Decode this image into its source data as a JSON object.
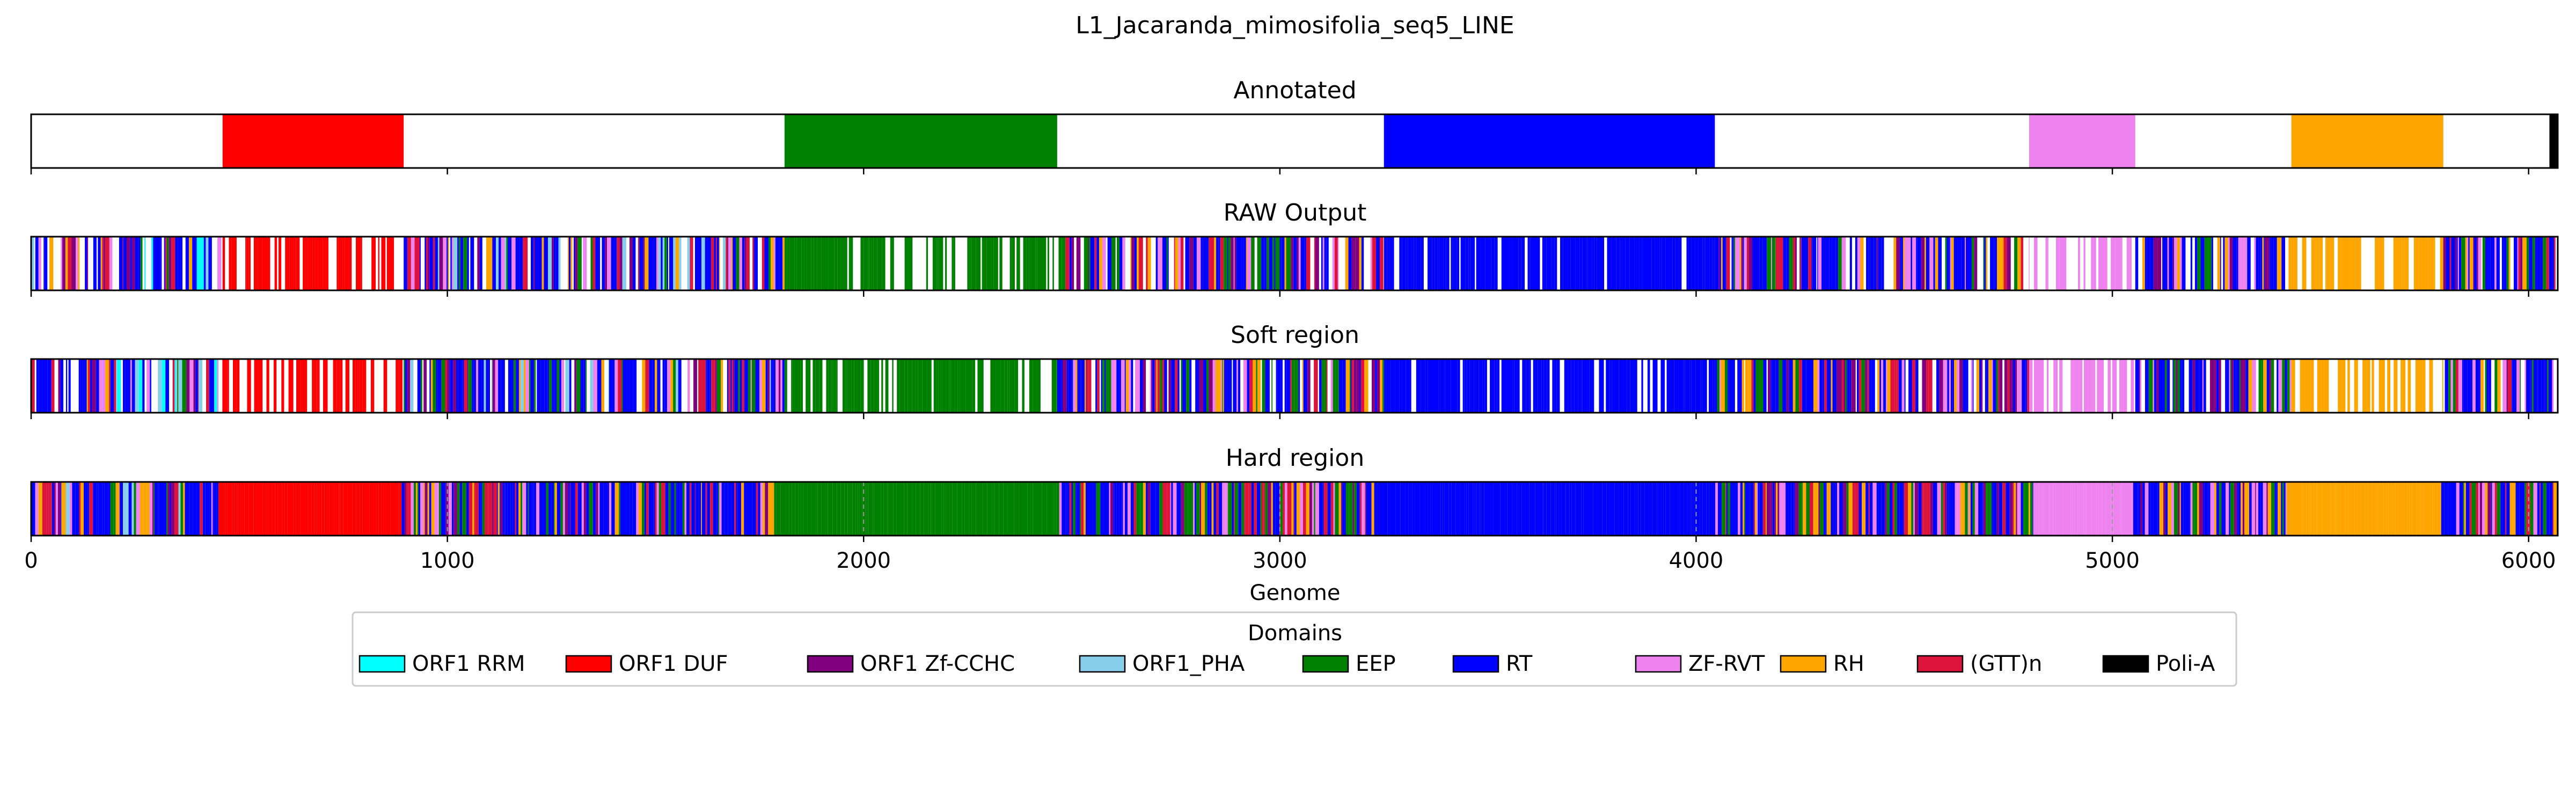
{
  "chart_data": {
    "type": "bar",
    "title": "L1_Jacaranda_mimosifolia_seq5_LINE",
    "xlabel": "Genome",
    "xlim": [
      0,
      6070
    ],
    "xticks": [
      0,
      1000,
      2000,
      3000,
      4000,
      5000,
      6000
    ],
    "tick_labels": [
      "0",
      "1000",
      "2000",
      "3000",
      "4000",
      "5000",
      "6000"
    ],
    "colors": {
      "ORF1 RRM": "#00ffff",
      "ORF1 DUF": "#ff0000",
      "ORF1 Zf-CCHC": "#800080",
      "ORF1_PHA": "#87ceeb",
      "EEP": "#008000",
      "RT": "#0000ff",
      "ZF-RVT": "#ee82ee",
      "RH": "#ffa500",
      "(GTT)n": "#dc143c",
      "Poli-A": "#000000"
    },
    "legend": {
      "title": "Domains",
      "placement": "bottom-center",
      "entries": [
        "ORF1 RRM",
        "ORF1 DUF",
        "ORF1 Zf-CCHC",
        "ORF1_PHA",
        "EEP",
        "RT",
        "ZF-RVT",
        "RH",
        "(GTT)n",
        "Poli-A"
      ]
    },
    "panels": [
      {
        "title": "Annotated",
        "segments": [
          {
            "domain": "ORF1 DUF",
            "start": 460,
            "end": 895
          },
          {
            "domain": "EEP",
            "start": 1810,
            "end": 2465
          },
          {
            "domain": "RT",
            "start": 3250,
            "end": 4045
          },
          {
            "domain": "ZF-RVT",
            "start": 4800,
            "end": 5055
          },
          {
            "domain": "RH",
            "start": 5430,
            "end": 5795
          },
          {
            "domain": "Poli-A",
            "start": 6050,
            "end": 6070
          }
        ]
      },
      {
        "title": "RAW Output",
        "regions": [
          {
            "start": 0,
            "end": 460,
            "domains": [
              "RT",
              "ORF1 RRM",
              "(GTT)n",
              "ORF1 Zf-CCHC",
              "RH",
              "EEP",
              "ZF-RVT",
              "ORF1_PHA"
            ],
            "white": 0.2
          },
          {
            "start": 460,
            "end": 895,
            "domains": [
              "ORF1 DUF"
            ],
            "white": 0.35
          },
          {
            "start": 895,
            "end": 1810,
            "domains": [
              "RT",
              "EEP",
              "(GTT)n",
              "ORF1 Zf-CCHC",
              "RH",
              "ZF-RVT",
              "ORF1_PHA"
            ],
            "white": 0.12
          },
          {
            "start": 1810,
            "end": 2465,
            "domains": [
              "EEP"
            ],
            "white": 0.3
          },
          {
            "start": 2465,
            "end": 3250,
            "domains": [
              "RT",
              "ORF1 Zf-CCHC",
              "EEP",
              "(GTT)n",
              "RH",
              "ZF-RVT"
            ],
            "white": 0.15
          },
          {
            "start": 3250,
            "end": 4045,
            "domains": [
              "RT"
            ],
            "white": 0.18
          },
          {
            "start": 4045,
            "end": 4800,
            "domains": [
              "RT",
              "ORF1 Zf-CCHC",
              "(GTT)n",
              "RH",
              "EEP",
              "ZF-RVT"
            ],
            "white": 0.1
          },
          {
            "start": 4800,
            "end": 5055,
            "domains": [
              "ZF-RVT"
            ],
            "white": 0.45
          },
          {
            "start": 5055,
            "end": 5430,
            "domains": [
              "RT",
              "EEP",
              "ORF1 Zf-CCHC",
              "RH",
              "ZF-RVT"
            ],
            "white": 0.1
          },
          {
            "start": 5430,
            "end": 5795,
            "domains": [
              "RH"
            ],
            "white": 0.3
          },
          {
            "start": 5795,
            "end": 6070,
            "domains": [
              "RT",
              "EEP",
              "ORF1 Zf-CCHC",
              "(GTT)n",
              "ZF-RVT",
              "RH"
            ],
            "white": 0.1
          }
        ]
      },
      {
        "title": "Soft region",
        "regions": [
          {
            "start": 0,
            "end": 460,
            "domains": [
              "RT",
              "ORF1 RRM",
              "(GTT)n",
              "ORF1 Zf-CCHC",
              "RH",
              "EEP",
              "ZF-RVT",
              "ORF1_PHA"
            ],
            "white": 0.2
          },
          {
            "start": 460,
            "end": 895,
            "domains": [
              "ORF1 DUF"
            ],
            "white": 0.33
          },
          {
            "start": 895,
            "end": 1810,
            "domains": [
              "RT",
              "EEP",
              "(GTT)n",
              "ORF1 Zf-CCHC",
              "RH",
              "ZF-RVT",
              "ORF1_PHA"
            ],
            "white": 0.12
          },
          {
            "start": 1810,
            "end": 2465,
            "domains": [
              "EEP"
            ],
            "white": 0.28
          },
          {
            "start": 2465,
            "end": 3250,
            "domains": [
              "RT",
              "ORF1 Zf-CCHC",
              "EEP",
              "(GTT)n",
              "RH",
              "ZF-RVT"
            ],
            "white": 0.15
          },
          {
            "start": 3250,
            "end": 4045,
            "domains": [
              "RT"
            ],
            "white": 0.16
          },
          {
            "start": 4045,
            "end": 4800,
            "domains": [
              "RT",
              "ORF1 Zf-CCHC",
              "(GTT)n",
              "RH",
              "EEP",
              "ZF-RVT"
            ],
            "white": 0.1
          },
          {
            "start": 4800,
            "end": 5055,
            "domains": [
              "ZF-RVT"
            ],
            "white": 0.45
          },
          {
            "start": 5055,
            "end": 5430,
            "domains": [
              "RT",
              "EEP",
              "ORF1 Zf-CCHC",
              "RH",
              "ZF-RVT"
            ],
            "white": 0.1
          },
          {
            "start": 5430,
            "end": 5795,
            "domains": [
              "RH"
            ],
            "white": 0.28
          },
          {
            "start": 5795,
            "end": 6070,
            "domains": [
              "RT",
              "EEP",
              "ORF1 Zf-CCHC",
              "(GTT)n",
              "ZF-RVT",
              "RH"
            ],
            "white": 0.1
          }
        ]
      },
      {
        "title": "Hard region",
        "regions": [
          {
            "start": 0,
            "end": 450,
            "domains": [
              "RT",
              "RH",
              "(GTT)n",
              "ORF1 Zf-CCHC",
              "EEP",
              "ZF-RVT",
              "ORF1_PHA"
            ],
            "white": 0.0
          },
          {
            "start": 450,
            "end": 890,
            "domains": [
              "ORF1 DUF"
            ],
            "white": 0.0
          },
          {
            "start": 890,
            "end": 1790,
            "domains": [
              "RT",
              "EEP",
              "(GTT)n",
              "ORF1 Zf-CCHC",
              "RH",
              "ZF-RVT"
            ],
            "white": 0.0
          },
          {
            "start": 1790,
            "end": 2470,
            "domains": [
              "EEP"
            ],
            "white": 0.0
          },
          {
            "start": 2470,
            "end": 3240,
            "domains": [
              "RT",
              "ORF1 Zf-CCHC",
              "EEP",
              "(GTT)n",
              "RH",
              "ZF-RVT"
            ],
            "white": 0.0
          },
          {
            "start": 3240,
            "end": 4040,
            "domains": [
              "RT"
            ],
            "white": 0.0
          },
          {
            "start": 4040,
            "end": 4810,
            "domains": [
              "RT",
              "ORF1 Zf-CCHC",
              "(GTT)n",
              "RH",
              "EEP",
              "ZF-RVT"
            ],
            "white": 0.0
          },
          {
            "start": 4810,
            "end": 5050,
            "domains": [
              "ZF-RVT"
            ],
            "white": 0.0
          },
          {
            "start": 5050,
            "end": 5420,
            "domains": [
              "RT",
              "EEP",
              "ORF1 Zf-CCHC",
              "RH",
              "ZF-RVT"
            ],
            "white": 0.0
          },
          {
            "start": 5420,
            "end": 5790,
            "domains": [
              "RH"
            ],
            "white": 0.0
          },
          {
            "start": 5790,
            "end": 6070,
            "domains": [
              "RT",
              "EEP",
              "ORF1 Zf-CCHC",
              "(GTT)n",
              "ZF-RVT",
              "RH"
            ],
            "white": 0.0
          }
        ]
      }
    ]
  }
}
